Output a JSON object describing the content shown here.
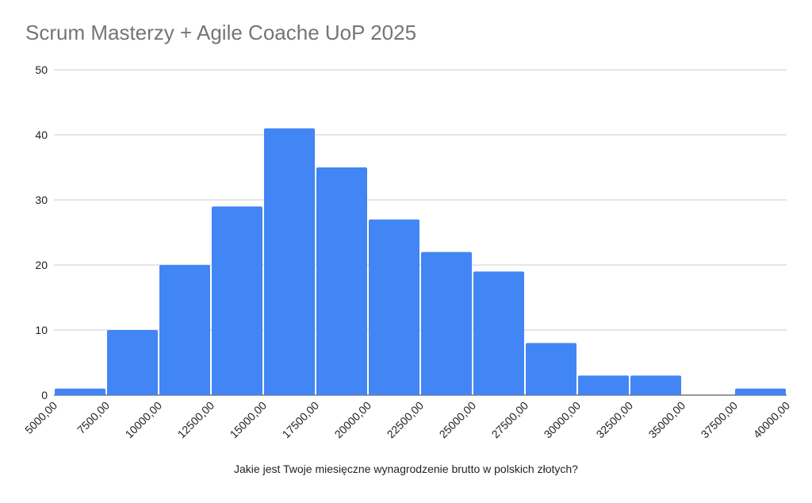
{
  "chart_data": {
    "type": "bar",
    "title": "Scrum Masterzy + Agile Coache UoP 2025",
    "xlabel": "Jakie jest Twoje miesięczne wynagrodzenie brutto w polskich złotych?",
    "ylabel": "",
    "ylim": [
      0,
      50
    ],
    "yticks": [
      0,
      10,
      20,
      30,
      40,
      50
    ],
    "xticks": [
      "5000,00",
      "7500,00",
      "10000,00",
      "12500,00",
      "15000,00",
      "17500,00",
      "20000,00",
      "22500,00",
      "25000,00",
      "27500,00",
      "30000,00",
      "32500,00",
      "35000,00",
      "37500,00",
      "40000,00"
    ],
    "bins": [
      [
        5000,
        7500
      ],
      [
        7500,
        10000
      ],
      [
        10000,
        12500
      ],
      [
        12500,
        15000
      ],
      [
        15000,
        17500
      ],
      [
        17500,
        20000
      ],
      [
        20000,
        22500
      ],
      [
        22500,
        25000
      ],
      [
        25000,
        27500
      ],
      [
        27500,
        30000
      ],
      [
        30000,
        32500
      ],
      [
        32500,
        35000
      ],
      [
        35000,
        37500
      ],
      [
        37500,
        40000
      ]
    ],
    "values": [
      1,
      10,
      20,
      29,
      41,
      35,
      27,
      22,
      19,
      8,
      3,
      3,
      0,
      1
    ],
    "bar_color": "#4285f4",
    "grid": true,
    "legend": "none"
  }
}
